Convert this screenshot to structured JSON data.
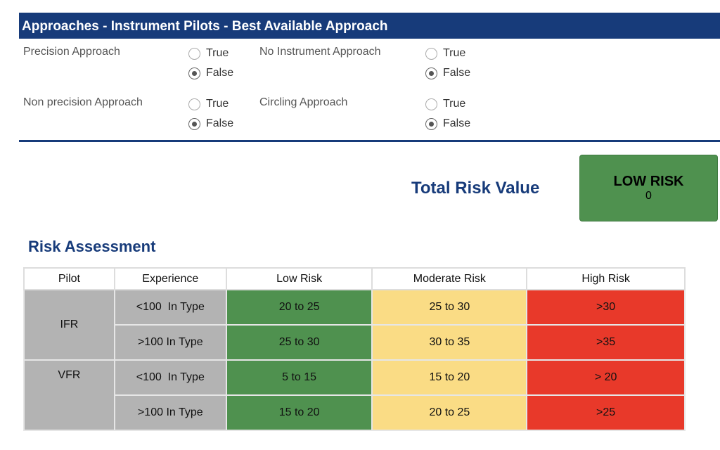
{
  "section": {
    "title": "Approaches - Instrument Pilots - Best Available Approach"
  },
  "questions": [
    {
      "label": "Precision Approach",
      "options": [
        "True",
        "False"
      ],
      "selected": "False"
    },
    {
      "label": "No Instrument Approach",
      "options": [
        "True",
        "False"
      ],
      "selected": "False"
    },
    {
      "label": "Non precision Approach",
      "options": [
        "True",
        "False"
      ],
      "selected": "False"
    },
    {
      "label": "Circling Approach",
      "options": [
        "True",
        "False"
      ],
      "selected": "False"
    }
  ],
  "total": {
    "label": "Total Risk Value",
    "level": "LOW RISK",
    "value": "0",
    "color": "#4f914f"
  },
  "assessment": {
    "title": "Risk Assessment",
    "headers": [
      "Pilot",
      "Experience",
      "Low Risk",
      "Moderate Risk",
      "High Risk"
    ],
    "rows": [
      {
        "pilot": "IFR",
        "experience": "<100  In Type",
        "low": "20 to 25",
        "moderate": "25 to 30",
        "high": ">30"
      },
      {
        "pilot": "IFR",
        "experience": ">100 In Type",
        "low": "25 to 30",
        "moderate": "30 to 35",
        "high": ">35"
      },
      {
        "pilot": "VFR",
        "experience": "<100  In Type",
        "low": "5 to 15",
        "moderate": "15 to 20",
        "high": "> 20"
      },
      {
        "pilot": "VFR",
        "experience": ">100 In Type",
        "low": "15 to 20",
        "moderate": "20 to 25",
        "high": ">25"
      }
    ]
  }
}
